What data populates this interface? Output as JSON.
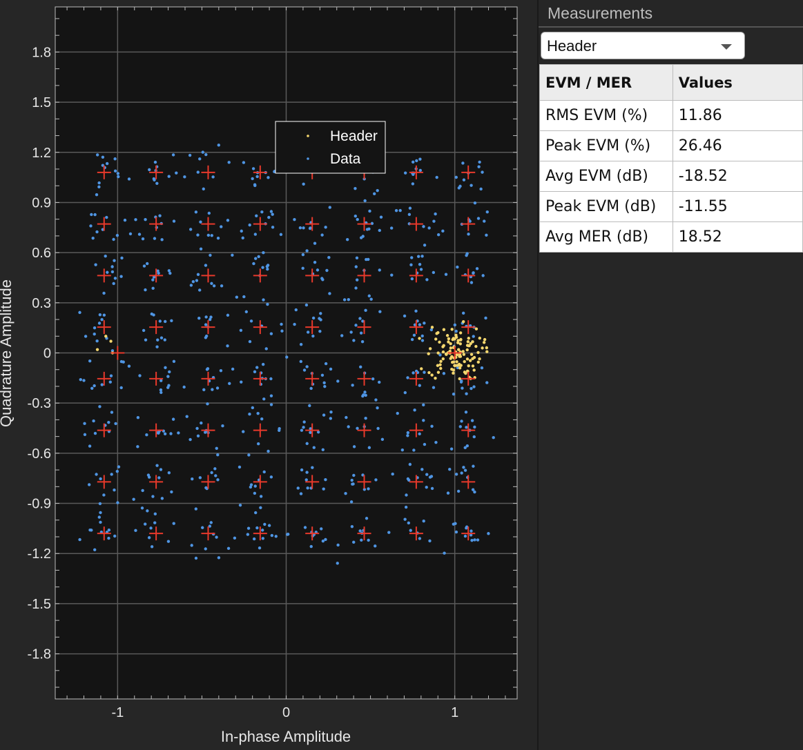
{
  "chart_data": {
    "type": "scatter",
    "xlabel": "In-phase Amplitude",
    "ylabel": "Quadrature Amplitude",
    "xlim": [
      -1.37,
      1.37
    ],
    "ylim": [
      -2.07,
      2.07
    ],
    "xticks": [
      -1,
      0,
      1
    ],
    "xtick_labels": [
      "-1",
      "0",
      "1"
    ],
    "yticks": [
      1.8,
      1.5,
      1.2,
      0.9,
      0.6,
      0.3,
      0,
      -0.3,
      -0.6,
      -0.9,
      -1.2,
      -1.5,
      -1.8
    ],
    "ytick_labels": [
      "1.8",
      "1.5",
      "1.2",
      "0.9",
      "0.6",
      "0.3",
      "0",
      "-0.3",
      "-0.6",
      "-0.9",
      "-1.2",
      "-1.5",
      "-1.8"
    ],
    "grid": true,
    "legend_position": "top-center",
    "series": [
      {
        "name": "Header",
        "color": "#f5d76e",
        "center": [
          1.0,
          0.0
        ],
        "spread": 0.08,
        "count": 110
      },
      {
        "name": "Data",
        "color": "#4f95e3",
        "levels": [
          -1.0801,
          -0.7715,
          -0.4629,
          -0.1543,
          0.1543,
          0.4629,
          0.7715,
          1.0801
        ],
        "spread": 0.07,
        "per_point": 11
      }
    ],
    "reference_constellation": {
      "color": "#e8392b",
      "levels": [
        -1.0801,
        -0.7715,
        -0.4629,
        -0.1543,
        0.1543,
        0.4629,
        0.7715,
        1.0801
      ],
      "extra_points": [
        [
          -1.0,
          0.0
        ],
        [
          1.0,
          0.0
        ]
      ]
    }
  },
  "panel": {
    "title": "Measurements",
    "dropdown_value": "Header",
    "table": {
      "headers": [
        "EVM / MER",
        "Values"
      ],
      "rows": [
        [
          "RMS EVM (%)",
          "11.86"
        ],
        [
          "Peak EVM (%)",
          "26.46"
        ],
        [
          "Avg EVM (dB)",
          "-18.52"
        ],
        [
          "Peak EVM (dB)",
          "-11.55"
        ],
        [
          "Avg MER (dB)",
          "18.52"
        ]
      ]
    }
  },
  "colors": {
    "plot_background": "#141414",
    "panel_background": "#262626",
    "grid": "#5a5a5a",
    "reference_marker": "#e8392b"
  }
}
